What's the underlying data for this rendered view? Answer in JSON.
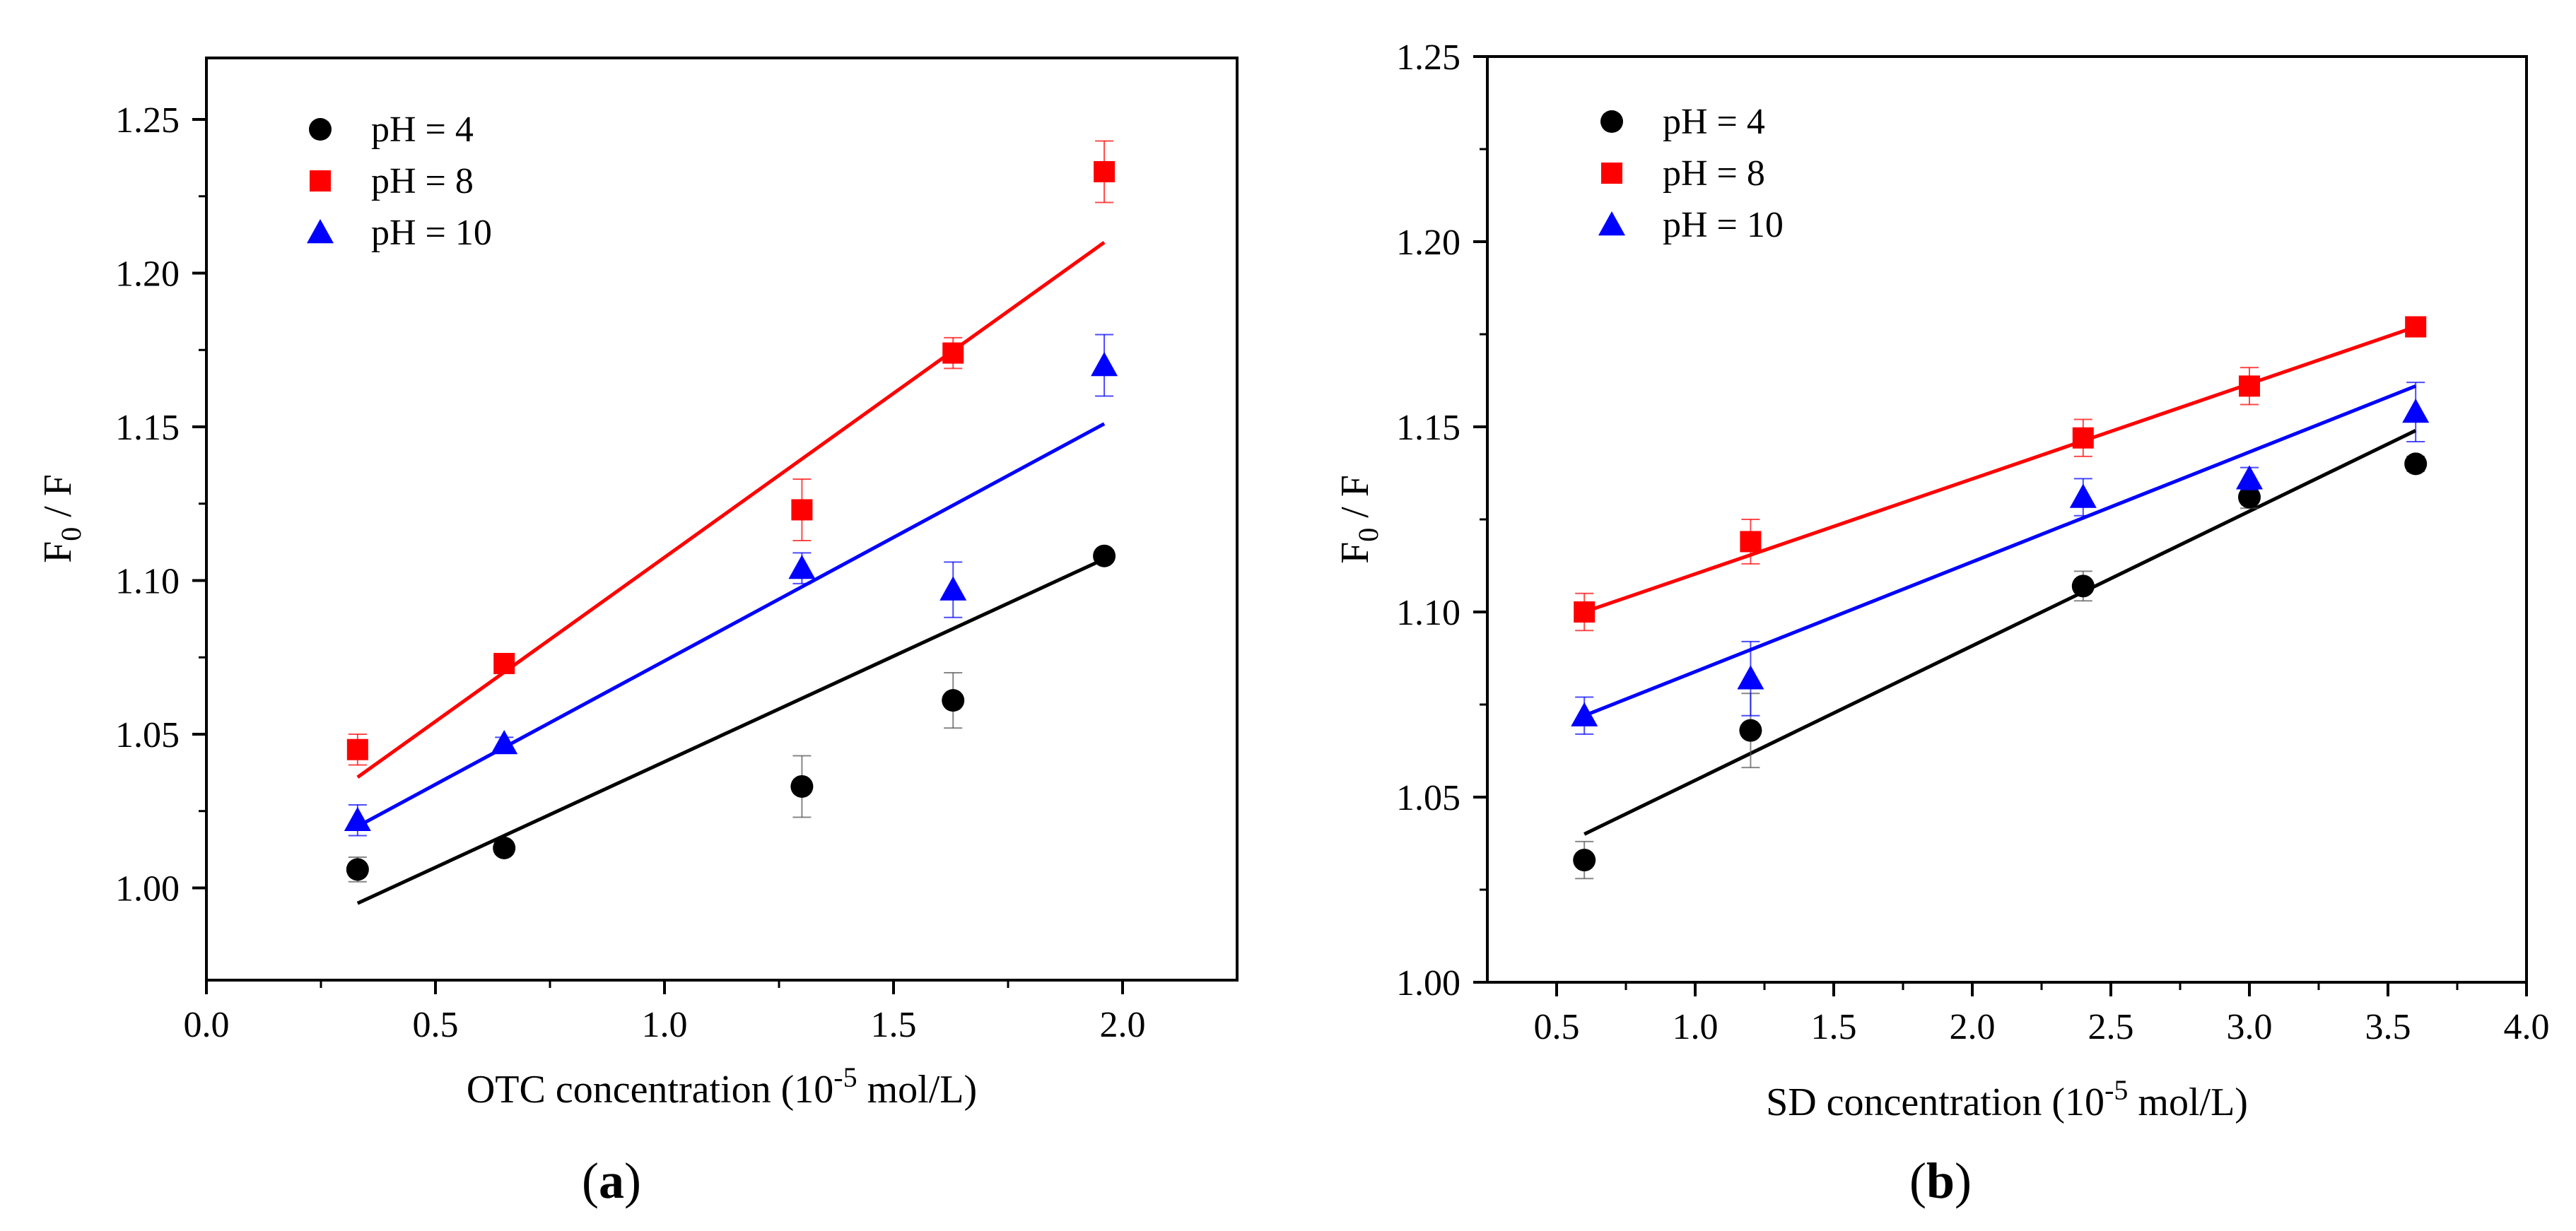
{
  "figure": {
    "panel_a_label": {
      "open": "(",
      "letter": "a",
      "close": ")"
    },
    "panel_b_label": {
      "open": "(",
      "letter": "b",
      "close": ")"
    },
    "ylabel": {
      "main": "F",
      "sub": "0",
      "rest": " / F"
    }
  },
  "chart_data": [
    {
      "type": "scatter",
      "panel": "a",
      "xlabel": {
        "pre": "OTC concentration (10",
        "sup": "-5",
        "post": " mol/L)"
      },
      "ylabel": "F0 / F",
      "xlim": [
        0,
        2.25
      ],
      "ylim": [
        0.97,
        1.27
      ],
      "xticks": [
        0.0,
        0.5,
        1.0,
        1.5,
        2.0
      ],
      "xtick_labels": [
        "0.0",
        "0.5",
        "1.0",
        "1.5",
        "2.0"
      ],
      "yticks": [
        1.0,
        1.05,
        1.1,
        1.15,
        1.2,
        1.25
      ],
      "ytick_labels": [
        "1.00",
        "1.05",
        "1.10",
        "1.15",
        "1.20",
        "1.25"
      ],
      "legend_position": "top-left",
      "series": [
        {
          "name": "pH = 4",
          "marker": "circle",
          "color": "#000000",
          "x": [
            0.33,
            0.65,
            1.3,
            1.63,
            1.96
          ],
          "y": [
            1.006,
            1.013,
            1.033,
            1.061,
            1.108
          ],
          "err": [
            0.004,
            0.002,
            0.01,
            0.009,
            0.002
          ],
          "fit": {
            "x": [
              0.33,
              1.96
            ],
            "y": [
              0.995,
              1.107
            ]
          }
        },
        {
          "name": "pH = 8",
          "marker": "square",
          "color": "#ff0000",
          "x": [
            0.33,
            0.65,
            1.3,
            1.63,
            1.96
          ],
          "y": [
            1.045,
            1.073,
            1.123,
            1.174,
            1.233
          ],
          "err": [
            0.005,
            0.002,
            0.01,
            0.005,
            0.01
          ],
          "fit": {
            "x": [
              0.33,
              1.96
            ],
            "y": [
              1.036,
              1.21
            ]
          }
        },
        {
          "name": "pH = 10",
          "marker": "triangle",
          "color": "#0000ff",
          "x": [
            0.33,
            0.65,
            1.3,
            1.63,
            1.96
          ],
          "y": [
            1.022,
            1.047,
            1.104,
            1.097,
            1.17
          ],
          "err": [
            0.005,
            0.002,
            0.005,
            0.009,
            0.01
          ],
          "fit": {
            "x": [
              0.33,
              1.96
            ],
            "y": [
              1.02,
              1.151
            ]
          }
        }
      ]
    },
    {
      "type": "scatter",
      "panel": "b",
      "xlabel": {
        "pre": "SD concentration (10",
        "sup": "-5",
        "post": " mol/L)"
      },
      "ylabel": "F0 / F",
      "xlim": [
        0.25,
        4.0
      ],
      "ylim": [
        1.0,
        1.25
      ],
      "xticks": [
        0.5,
        1.0,
        1.5,
        2.0,
        2.5,
        3.0,
        3.5,
        4.0
      ],
      "xtick_labels": [
        "0.5",
        "1.0",
        "1.5",
        "2.0",
        "2.5",
        "3.0",
        "3.5",
        "4.0"
      ],
      "yticks": [
        1.0,
        1.05,
        1.1,
        1.15,
        1.2,
        1.25
      ],
      "ytick_labels": [
        "1.00",
        "1.05",
        "1.10",
        "1.15",
        "1.20",
        "1.25"
      ],
      "legend_position": "top-left",
      "series": [
        {
          "name": "pH = 4",
          "marker": "circle",
          "color": "#000000",
          "x": [
            0.6,
            1.2,
            2.4,
            3.0,
            3.6
          ],
          "y": [
            1.033,
            1.068,
            1.107,
            1.131,
            1.14
          ],
          "err": [
            0.005,
            0.01,
            0.004,
            0.003,
            0.002
          ],
          "fit": {
            "x": [
              0.6,
              3.6
            ],
            "y": [
              1.04,
              1.149
            ]
          }
        },
        {
          "name": "pH = 8",
          "marker": "square",
          "color": "#ff0000",
          "x": [
            0.6,
            1.2,
            2.4,
            3.0,
            3.6
          ],
          "y": [
            1.1,
            1.119,
            1.147,
            1.161,
            1.177
          ],
          "err": [
            0.005,
            0.006,
            0.005,
            0.005,
            0.002
          ],
          "fit": {
            "x": [
              0.6,
              3.6
            ],
            "y": [
              1.1,
              1.177
            ]
          }
        },
        {
          "name": "pH = 10",
          "marker": "triangle",
          "color": "#0000ff",
          "x": [
            0.6,
            1.2,
            2.4,
            3.0,
            3.6
          ],
          "y": [
            1.072,
            1.082,
            1.131,
            1.136,
            1.154
          ],
          "err": [
            0.005,
            0.01,
            0.005,
            0.003,
            0.008
          ],
          "fit": {
            "x": [
              0.6,
              3.6
            ],
            "y": [
              1.072,
              1.161
            ]
          }
        }
      ]
    }
  ]
}
